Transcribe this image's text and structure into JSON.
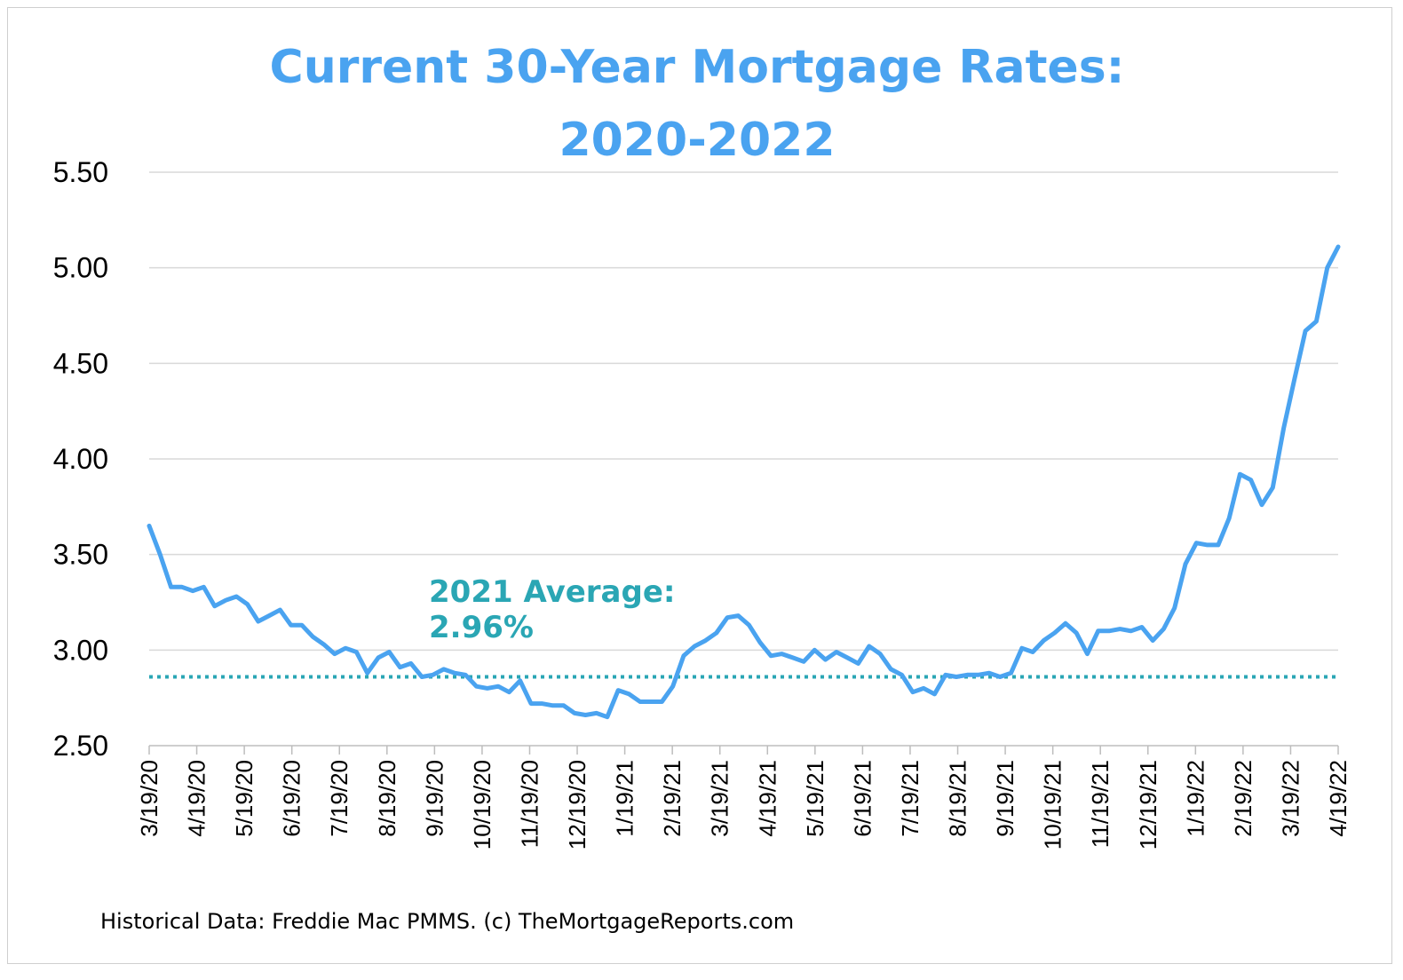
{
  "chart_data": {
    "type": "line",
    "title": [
      "Current 30-Year Mortgage Rates:",
      "2020-2022"
    ],
    "xlabel": "",
    "ylabel": "",
    "ylim": [
      2.5,
      5.5
    ],
    "yticks": [
      "5.50",
      "5.00",
      "4.50",
      "4.00",
      "3.50",
      "3.00",
      "2.50"
    ],
    "ytick_values": [
      5.5,
      5.0,
      4.5,
      4.0,
      3.5,
      3.0,
      2.5
    ],
    "xticks": [
      "3/19/20",
      "4/19/20",
      "5/19/20",
      "6/19/20",
      "7/19/20",
      "8/19/20",
      "9/19/20",
      "10/19/20",
      "11/19/20",
      "12/19/20",
      "1/19/21",
      "2/19/21",
      "3/19/21",
      "4/19/21",
      "5/19/21",
      "6/19/21",
      "7/19/21",
      "8/19/21",
      "9/19/21",
      "10/19/21",
      "11/19/21",
      "12/19/21",
      "1/19/22",
      "2/19/22",
      "3/19/22",
      "4/19/22"
    ],
    "grid": true,
    "series": [
      {
        "values": [
          3.65,
          3.5,
          3.33,
          3.33,
          3.31,
          3.33,
          3.23,
          3.26,
          3.28,
          3.24,
          3.15,
          3.18,
          3.21,
          3.13,
          3.13,
          3.07,
          3.03,
          2.98,
          3.01,
          2.99,
          2.88,
          2.96,
          2.99,
          2.91,
          2.93,
          2.86,
          2.87,
          2.9,
          2.88,
          2.87,
          2.81,
          2.8,
          2.81,
          2.78,
          2.84,
          2.72,
          2.72,
          2.71,
          2.71,
          2.67,
          2.66,
          2.67,
          2.65,
          2.79,
          2.77,
          2.73,
          2.73,
          2.73,
          2.81,
          2.97,
          3.02,
          3.05,
          3.09,
          3.17,
          3.18,
          3.13,
          3.04,
          2.97,
          2.98,
          2.96,
          2.94,
          3.0,
          2.95,
          2.99,
          2.96,
          2.93,
          3.02,
          2.98,
          2.9,
          2.87,
          2.78,
          2.8,
          2.77,
          2.87,
          2.86,
          2.87,
          2.87,
          2.88,
          2.86,
          2.88,
          3.01,
          2.99,
          3.05,
          3.09,
          3.14,
          3.09,
          2.98,
          3.1,
          3.1,
          3.11,
          3.1,
          3.12,
          3.05,
          3.11,
          3.22,
          3.45,
          3.56,
          3.55,
          3.55,
          3.69,
          3.92,
          3.89,
          3.76,
          3.85,
          4.16,
          4.42,
          4.67,
          4.72,
          5.0,
          5.11
        ],
        "color": "#4aa3f0"
      }
    ],
    "reference_line": {
      "value": 2.86,
      "color": "#2aa6b4",
      "style": "dotted"
    },
    "annotation": [
      "2021 Average:",
      "2.96%"
    ],
    "source": "Historical Data: Freddie Mac PMMS. (c) TheMortgageReports.com"
  }
}
